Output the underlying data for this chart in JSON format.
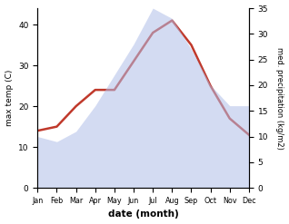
{
  "months": [
    "Jan",
    "Feb",
    "Mar",
    "Apr",
    "May",
    "Jun",
    "Jul",
    "Aug",
    "Sep",
    "Oct",
    "Nov",
    "Dec"
  ],
  "temp": [
    14,
    15,
    20,
    24,
    24,
    31,
    38,
    41,
    35,
    25,
    17,
    13
  ],
  "precip": [
    10,
    9,
    11,
    16,
    22,
    28,
    35,
    33,
    27,
    20,
    16,
    16
  ],
  "temp_color": "#c0392b",
  "precip_color": "#b0bee8",
  "precip_alpha": 0.55,
  "xlabel": "date (month)",
  "ylabel_left": "max temp (C)",
  "ylabel_right": "med. precipitation (kg/m2)",
  "ylim_left": [
    0,
    44
  ],
  "ylim_right": [
    0,
    35
  ],
  "yticks_left": [
    0,
    10,
    20,
    30,
    40
  ],
  "yticks_right": [
    0,
    5,
    10,
    15,
    20,
    25,
    30,
    35
  ],
  "temp_linewidth": 1.8,
  "background_color": "#ffffff"
}
